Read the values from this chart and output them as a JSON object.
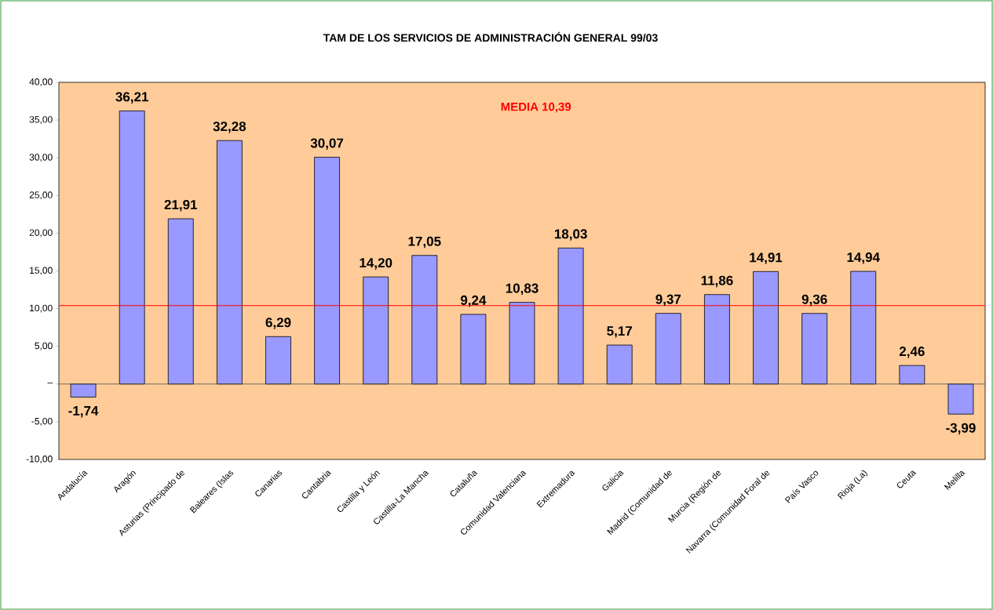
{
  "chart_data": {
    "type": "bar",
    "title": "TAM DE LOS SERVICIOS DE ADMINISTRACIÓN GENERAL 99/03",
    "categories": [
      "Andalucía",
      "Aragón",
      "Asturias (Principado de",
      "Baleares (Islas",
      "Canarias",
      "Cantabria",
      "Castilla y León",
      "Castilla-La Mancha",
      "Cataluña",
      "Comunidad Valenciana",
      "Extremadura",
      "Galicia",
      "Madrid (Comunidad de",
      "Murcia (Región de",
      "Navarra (Comunidad Foral de",
      "País Vasco",
      "Rioja (La)",
      "Ceuta",
      "Melilla"
    ],
    "values": [
      -1.74,
      36.21,
      21.91,
      32.28,
      6.29,
      30.07,
      14.2,
      17.05,
      9.24,
      10.83,
      18.03,
      5.17,
      9.37,
      11.86,
      14.91,
      9.36,
      14.94,
      2.46,
      -3.99
    ],
    "value_labels": [
      "-1,74",
      "36,21",
      "21,91",
      "32,28",
      "6,29",
      "30,07",
      "14,20",
      "17,05",
      "9,24",
      "10,83",
      "18,03",
      "5,17",
      "9,37",
      "11,86",
      "14,91",
      "9,36",
      "14,94",
      "2,46",
      "-3,99"
    ],
    "color": "#9999ff",
    "ylim": [
      -10,
      40
    ],
    "yticks": [
      {
        "value": -10,
        "label": "-10,00"
      },
      {
        "value": -5,
        "label": "-5,00"
      },
      {
        "value": 0,
        "label": "–"
      },
      {
        "value": 5,
        "label": "5,00"
      },
      {
        "value": 10,
        "label": "10,00"
      },
      {
        "value": 15,
        "label": "15,00"
      },
      {
        "value": 20,
        "label": "20,00"
      },
      {
        "value": 25,
        "label": "25,00"
      },
      {
        "value": 30,
        "label": "30,00"
      },
      {
        "value": 35,
        "label": "35,00"
      },
      {
        "value": 40,
        "label": "40,00"
      }
    ],
    "ref_lines": [
      {
        "axis": "y",
        "value": 10.39,
        "label": "MEDIA 10,39",
        "color": "#ff0000"
      }
    ]
  }
}
